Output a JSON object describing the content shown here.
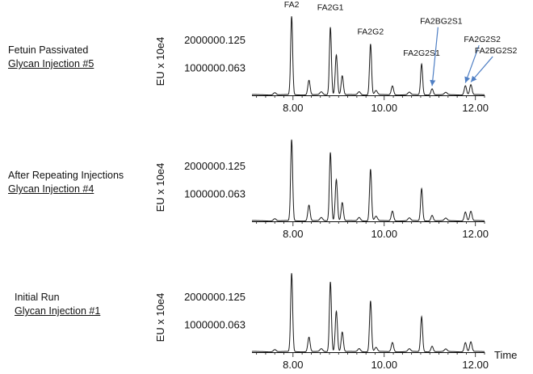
{
  "chart_data": [
    {
      "type": "line",
      "label_line1": "Fetuin Passivated",
      "label_line2": "Glycan Injection #5",
      "ylabel": "EU x 10e4",
      "xlabel": "",
      "xlim": [
        7.1,
        12.2
      ],
      "ylim": [
        0,
        2600000
      ],
      "y_ticks": [
        {
          "value": 1000000.063,
          "label": "1000000.063"
        },
        {
          "value": 2000000.125,
          "label": "2000000.125"
        }
      ],
      "x_ticks": [
        {
          "value": 8.0,
          "label": "8.00"
        },
        {
          "value": 10.0,
          "label": "10.00"
        },
        {
          "value": 12.0,
          "label": "12.00"
        }
      ],
      "peaks": [
        {
          "x": 7.6,
          "y": 80000,
          "w": 0.03
        },
        {
          "x": 7.97,
          "y": 2800000,
          "w": 0.022
        },
        {
          "x": 8.35,
          "y": 520000,
          "w": 0.025
        },
        {
          "x": 8.62,
          "y": 100000,
          "w": 0.03
        },
        {
          "x": 8.82,
          "y": 2420000,
          "w": 0.022
        },
        {
          "x": 8.95,
          "y": 1430000,
          "w": 0.024
        },
        {
          "x": 9.08,
          "y": 680000,
          "w": 0.024
        },
        {
          "x": 9.45,
          "y": 110000,
          "w": 0.03
        },
        {
          "x": 9.7,
          "y": 1820000,
          "w": 0.022
        },
        {
          "x": 9.82,
          "y": 150000,
          "w": 0.03
        },
        {
          "x": 10.18,
          "y": 320000,
          "w": 0.025
        },
        {
          "x": 10.55,
          "y": 90000,
          "w": 0.03
        },
        {
          "x": 10.82,
          "y": 1100000,
          "w": 0.022
        },
        {
          "x": 11.05,
          "y": 220000,
          "w": 0.025
        },
        {
          "x": 11.35,
          "y": 80000,
          "w": 0.03
        },
        {
          "x": 11.78,
          "y": 330000,
          "w": 0.025
        },
        {
          "x": 11.9,
          "y": 360000,
          "w": 0.025
        }
      ],
      "annotations": [
        {
          "text": "FA2",
          "x": 7.97,
          "y": 3150000,
          "arrow": false
        },
        {
          "text": "FA2G1",
          "x": 8.82,
          "y": 3050000,
          "arrow": false
        },
        {
          "text": "FA2G2",
          "x": 9.7,
          "y": 2180000,
          "arrow": false
        },
        {
          "text": "FA2G2S1",
          "x": 10.82,
          "y": 1420000,
          "arrow": false
        },
        {
          "text": "FA2BG2S1",
          "x": 11.25,
          "y": 2550000,
          "arrow": true,
          "tx": 11.05,
          "ty": 250000
        },
        {
          "text": "FA2G2S2",
          "x": 12.15,
          "y": 1900000,
          "arrow": true,
          "tx": 11.78,
          "ty": 360000
        },
        {
          "text": "FA2BG2S2",
          "x": 12.45,
          "y": 1500000,
          "arrow": true,
          "tx": 11.9,
          "ty": 390000
        }
      ]
    },
    {
      "type": "line",
      "label_line1": "After Repeating Injections",
      "label_line2": "Glycan Injection #4",
      "ylabel": "EU x 10e4",
      "xlabel": "",
      "xlim": [
        7.1,
        12.2
      ],
      "ylim": [
        0,
        2600000
      ],
      "y_ticks": [
        {
          "value": 1000000.063,
          "label": "1000000.063"
        },
        {
          "value": 2000000.125,
          "label": "2000000.125"
        }
      ],
      "x_ticks": [
        {
          "value": 8.0,
          "label": "8.00"
        },
        {
          "value": 10.0,
          "label": "10.00"
        },
        {
          "value": 12.0,
          "label": "12.00"
        }
      ],
      "peaks": [
        {
          "x": 7.6,
          "y": 80000,
          "w": 0.03
        },
        {
          "x": 7.97,
          "y": 2900000,
          "w": 0.022
        },
        {
          "x": 8.35,
          "y": 560000,
          "w": 0.025
        },
        {
          "x": 8.62,
          "y": 110000,
          "w": 0.03
        },
        {
          "x": 8.82,
          "y": 2450000,
          "w": 0.022
        },
        {
          "x": 8.95,
          "y": 1480000,
          "w": 0.024
        },
        {
          "x": 9.08,
          "y": 650000,
          "w": 0.024
        },
        {
          "x": 9.45,
          "y": 120000,
          "w": 0.03
        },
        {
          "x": 9.7,
          "y": 1850000,
          "w": 0.022
        },
        {
          "x": 9.82,
          "y": 160000,
          "w": 0.03
        },
        {
          "x": 10.18,
          "y": 350000,
          "w": 0.025
        },
        {
          "x": 10.55,
          "y": 100000,
          "w": 0.03
        },
        {
          "x": 10.82,
          "y": 1150000,
          "w": 0.022
        },
        {
          "x": 11.05,
          "y": 200000,
          "w": 0.025
        },
        {
          "x": 11.35,
          "y": 90000,
          "w": 0.03
        },
        {
          "x": 11.78,
          "y": 320000,
          "w": 0.025
        },
        {
          "x": 11.9,
          "y": 340000,
          "w": 0.025
        }
      ],
      "annotations": []
    },
    {
      "type": "line",
      "label_line1": "Initial Run",
      "label_line2": "Glycan Injection #1",
      "ylabel": "EU x 10e4",
      "xlabel": "Time",
      "xlim": [
        7.1,
        12.2
      ],
      "ylim": [
        0,
        2600000
      ],
      "y_ticks": [
        {
          "value": 1000000.063,
          "label": "1000000.063"
        },
        {
          "value": 2000000.125,
          "label": "2000000.125"
        }
      ],
      "x_ticks": [
        {
          "value": 8.0,
          "label": "8.00"
        },
        {
          "value": 10.0,
          "label": "10.00"
        },
        {
          "value": 12.0,
          "label": "12.00"
        }
      ],
      "peaks": [
        {
          "x": 7.6,
          "y": 80000,
          "w": 0.03
        },
        {
          "x": 7.97,
          "y": 2800000,
          "w": 0.022
        },
        {
          "x": 8.35,
          "y": 520000,
          "w": 0.025
        },
        {
          "x": 8.62,
          "y": 100000,
          "w": 0.03
        },
        {
          "x": 8.82,
          "y": 2500000,
          "w": 0.022
        },
        {
          "x": 8.95,
          "y": 1450000,
          "w": 0.024
        },
        {
          "x": 9.08,
          "y": 700000,
          "w": 0.024
        },
        {
          "x": 9.45,
          "y": 110000,
          "w": 0.03
        },
        {
          "x": 9.7,
          "y": 1820000,
          "w": 0.022
        },
        {
          "x": 9.82,
          "y": 150000,
          "w": 0.03
        },
        {
          "x": 10.18,
          "y": 330000,
          "w": 0.025
        },
        {
          "x": 10.55,
          "y": 100000,
          "w": 0.03
        },
        {
          "x": 10.82,
          "y": 1250000,
          "w": 0.022
        },
        {
          "x": 11.05,
          "y": 200000,
          "w": 0.025
        },
        {
          "x": 11.35,
          "y": 90000,
          "w": 0.03
        },
        {
          "x": 11.78,
          "y": 330000,
          "w": 0.025
        },
        {
          "x": 11.9,
          "y": 350000,
          "w": 0.025
        }
      ],
      "annotations": []
    }
  ],
  "colors": {
    "trace": "#1a1a1a",
    "axis": "#111111",
    "arrow": "#4f7fc4"
  }
}
